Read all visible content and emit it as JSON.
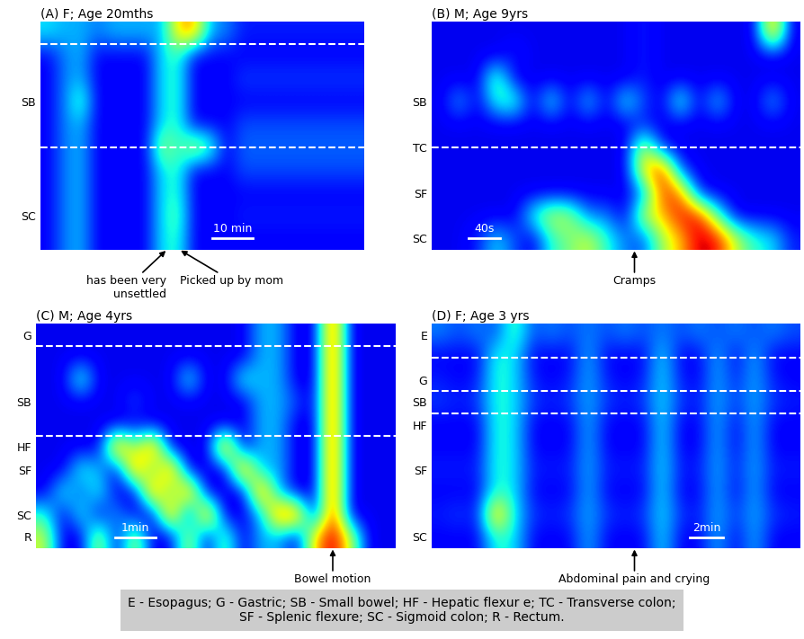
{
  "chart_data": [
    {
      "type": "heatmap",
      "title": "(A) F; Age 20mths",
      "row_labels": [
        null,
        null,
        null,
        "SB",
        null,
        null,
        null,
        null,
        "SC",
        null
      ],
      "dividers": [
        1,
        5.5
      ],
      "scale_bar": {
        "label": "10 min",
        "columns": 2.5
      },
      "events": [
        {
          "label": "has been very\nunsettled",
          "column": 7.8
        },
        {
          "label": "Picked up by mom",
          "column": 8.6
        }
      ],
      "color_range": [
        0,
        100
      ],
      "tick_labels": "y",
      "cells": [
        [
          35,
          30,
          30,
          25,
          30,
          30,
          30,
          30,
          70,
          75,
          30,
          25,
          15,
          15,
          15,
          15,
          15,
          15,
          15,
          15
        ],
        [
          12,
          25,
          30,
          12,
          12,
          12,
          12,
          35,
          40,
          12,
          12,
          12,
          12,
          12,
          12,
          12,
          12,
          12,
          12,
          12
        ],
        [
          12,
          25,
          30,
          12,
          12,
          12,
          12,
          35,
          40,
          12,
          12,
          12,
          18,
          18,
          18,
          18,
          18,
          18,
          18,
          18
        ],
        [
          12,
          25,
          45,
          12,
          12,
          12,
          12,
          35,
          40,
          12,
          12,
          12,
          12,
          12,
          12,
          12,
          12,
          12,
          12,
          12
        ],
        [
          12,
          25,
          30,
          12,
          12,
          12,
          12,
          35,
          40,
          12,
          12,
          12,
          20,
          20,
          20,
          20,
          20,
          20,
          20,
          20
        ],
        [
          12,
          25,
          30,
          12,
          12,
          12,
          12,
          55,
          40,
          60,
          45,
          12,
          22,
          22,
          22,
          22,
          22,
          22,
          22,
          22
        ],
        [
          12,
          25,
          30,
          12,
          12,
          12,
          12,
          35,
          40,
          12,
          12,
          12,
          20,
          20,
          20,
          20,
          20,
          20,
          20,
          20
        ],
        [
          12,
          25,
          30,
          12,
          12,
          12,
          12,
          35,
          40,
          12,
          12,
          12,
          12,
          12,
          12,
          12,
          12,
          12,
          12,
          12
        ],
        [
          12,
          25,
          30,
          12,
          12,
          12,
          12,
          35,
          45,
          12,
          12,
          12,
          15,
          15,
          15,
          15,
          15,
          15,
          15,
          15
        ],
        [
          12,
          25,
          30,
          12,
          12,
          12,
          12,
          35,
          40,
          12,
          12,
          12,
          12,
          12,
          12,
          12,
          12,
          12,
          12,
          12
        ]
      ]
    },
    {
      "type": "heatmap",
      "title": "(B) M; Age 9yrs",
      "row_labels": [
        null,
        null,
        null,
        "SB",
        null,
        "TC",
        null,
        "SF",
        null,
        "SC"
      ],
      "dividers": [
        5.5
      ],
      "scale_bar": {
        "label": "40s",
        "columns": 1.7
      },
      "events": [
        {
          "label": "Cramps",
          "column": 11
        }
      ],
      "color_range": [
        0,
        100
      ],
      "tick_labels": "y",
      "cells": [
        [
          10,
          10,
          10,
          10,
          10,
          10,
          10,
          10,
          10,
          10,
          10,
          15,
          10,
          10,
          10,
          10,
          10,
          10,
          80,
          10
        ],
        [
          10,
          10,
          10,
          10,
          15,
          10,
          10,
          10,
          10,
          10,
          10,
          15,
          10,
          10,
          10,
          10,
          10,
          10,
          10,
          10
        ],
        [
          10,
          10,
          10,
          50,
          10,
          10,
          10,
          10,
          10,
          10,
          10,
          15,
          10,
          10,
          10,
          10,
          10,
          10,
          10,
          10
        ],
        [
          10,
          30,
          10,
          40,
          45,
          10,
          40,
          10,
          35,
          10,
          40,
          20,
          10,
          45,
          10,
          35,
          10,
          10,
          30,
          10
        ],
        [
          10,
          10,
          10,
          10,
          10,
          10,
          10,
          10,
          10,
          10,
          10,
          15,
          10,
          10,
          10,
          10,
          10,
          10,
          10,
          10
        ],
        [
          10,
          10,
          10,
          10,
          10,
          10,
          10,
          10,
          10,
          10,
          10,
          60,
          15,
          10,
          10,
          10,
          10,
          10,
          10,
          10
        ],
        [
          10,
          10,
          10,
          10,
          10,
          10,
          10,
          10,
          10,
          10,
          10,
          70,
          90,
          20,
          10,
          10,
          10,
          10,
          10,
          10
        ],
        [
          10,
          10,
          10,
          10,
          10,
          10,
          10,
          10,
          10,
          10,
          10,
          25,
          85,
          80,
          15,
          10,
          10,
          10,
          10,
          10
        ],
        [
          10,
          10,
          10,
          10,
          10,
          40,
          60,
          55,
          25,
          25,
          10,
          60,
          70,
          90,
          90,
          45,
          10,
          10,
          10,
          10
        ],
        [
          10,
          10,
          15,
          35,
          20,
          10,
          40,
          50,
          60,
          40,
          25,
          20,
          55,
          70,
          95,
          90,
          60,
          40,
          35,
          15
        ]
      ]
    },
    {
      "type": "heatmap",
      "title": "(C) M; Age 4yrs",
      "row_labels": [
        "G",
        null,
        null,
        "SB",
        null,
        "HF",
        "SF",
        null,
        "SC",
        "R"
      ],
      "dividers": [
        1,
        5
      ],
      "scale_bar": {
        "label": "1min",
        "columns": 2.25
      },
      "events": [
        {
          "label": "Bowel motion",
          "column": 16.5
        }
      ],
      "color_range": [
        0,
        100
      ],
      "tick_labels": "y",
      "cells": [
        [
          10,
          10,
          10,
          10,
          10,
          10,
          10,
          10,
          10,
          10,
          10,
          10,
          30,
          30,
          10,
          10,
          90,
          10,
          10,
          10
        ],
        [
          10,
          10,
          10,
          10,
          10,
          10,
          10,
          10,
          10,
          10,
          10,
          10,
          30,
          30,
          10,
          10,
          90,
          10,
          10,
          10
        ],
        [
          10,
          10,
          45,
          10,
          10,
          10,
          10,
          10,
          40,
          10,
          10,
          40,
          30,
          30,
          10,
          10,
          90,
          10,
          10,
          10
        ],
        [
          10,
          10,
          10,
          10,
          10,
          20,
          10,
          10,
          10,
          10,
          10,
          10,
          30,
          30,
          20,
          10,
          90,
          10,
          10,
          10
        ],
        [
          10,
          10,
          10,
          10,
          10,
          10,
          10,
          10,
          10,
          10,
          10,
          10,
          30,
          30,
          10,
          10,
          90,
          10,
          10,
          10
        ],
        [
          10,
          10,
          10,
          10,
          85,
          50,
          85,
          10,
          10,
          10,
          85,
          10,
          30,
          30,
          10,
          10,
          90,
          10,
          10,
          10
        ],
        [
          10,
          10,
          40,
          30,
          10,
          85,
          40,
          85,
          10,
          10,
          10,
          85,
          30,
          30,
          10,
          10,
          90,
          10,
          10,
          10
        ],
        [
          10,
          40,
          20,
          40,
          10,
          10,
          85,
          40,
          85,
          10,
          10,
          10,
          85,
          30,
          10,
          10,
          90,
          10,
          10,
          10
        ],
        [
          40,
          10,
          40,
          10,
          30,
          10,
          10,
          85,
          10,
          85,
          10,
          10,
          30,
          85,
          85,
          10,
          90,
          10,
          10,
          10
        ],
        [
          60,
          10,
          10,
          60,
          10,
          60,
          10,
          10,
          60,
          10,
          50,
          10,
          30,
          30,
          10,
          70,
          95,
          60,
          10,
          10
        ]
      ]
    },
    {
      "type": "heatmap",
      "title": "(D) F; Age 3 yrs",
      "row_labels": [
        "E",
        null,
        "G",
        "SB",
        "HF",
        null,
        "SF",
        null,
        null,
        "SC"
      ],
      "dividers": [
        1.5,
        3,
        4
      ],
      "scale_bar": {
        "label": "2min",
        "columns": 1.8
      },
      "events": [
        {
          "label": "Abdominal pain and crying",
          "column": 11
        }
      ],
      "color_range": [
        0,
        100
      ],
      "tick_labels": "y",
      "cells": [
        [
          25,
          20,
          25,
          20,
          45,
          20,
          25,
          20,
          25,
          20,
          25,
          20,
          25,
          20,
          25,
          20,
          25,
          20,
          25,
          20
        ],
        [
          12,
          12,
          12,
          40,
          35,
          12,
          12,
          12,
          30,
          12,
          12,
          12,
          35,
          12,
          12,
          30,
          12,
          30,
          12,
          12
        ],
        [
          15,
          12,
          15,
          40,
          35,
          15,
          12,
          15,
          30,
          15,
          12,
          15,
          35,
          15,
          12,
          30,
          15,
          30,
          15,
          12
        ],
        [
          18,
          15,
          18,
          40,
          35,
          18,
          15,
          18,
          30,
          18,
          15,
          18,
          35,
          18,
          15,
          30,
          18,
          30,
          18,
          15
        ],
        [
          12,
          12,
          12,
          40,
          35,
          12,
          12,
          12,
          30,
          12,
          12,
          12,
          35,
          12,
          12,
          30,
          12,
          30,
          12,
          12
        ],
        [
          12,
          12,
          12,
          40,
          35,
          12,
          12,
          12,
          30,
          12,
          12,
          12,
          35,
          12,
          12,
          30,
          12,
          30,
          12,
          12
        ],
        [
          15,
          15,
          15,
          40,
          35,
          15,
          15,
          15,
          30,
          15,
          15,
          15,
          35,
          15,
          15,
          30,
          15,
          30,
          15,
          15
        ],
        [
          12,
          12,
          12,
          40,
          35,
          12,
          12,
          12,
          30,
          12,
          12,
          12,
          35,
          12,
          12,
          30,
          12,
          30,
          12,
          12
        ],
        [
          15,
          18,
          15,
          80,
          35,
          18,
          15,
          18,
          30,
          18,
          15,
          18,
          35,
          18,
          15,
          30,
          18,
          30,
          18,
          15
        ],
        [
          12,
          12,
          12,
          40,
          35,
          12,
          12,
          12,
          30,
          12,
          12,
          12,
          35,
          12,
          12,
          30,
          12,
          30,
          12,
          12
        ]
      ]
    }
  ],
  "key": [
    "E - Esopagus; G - Gastric; SB - Small bowel; HF - Hepatic flexur e; TC - Transverse colon;",
    "SF - Splenic flexure; SC - Sigmoid colon; R - Rectum."
  ]
}
